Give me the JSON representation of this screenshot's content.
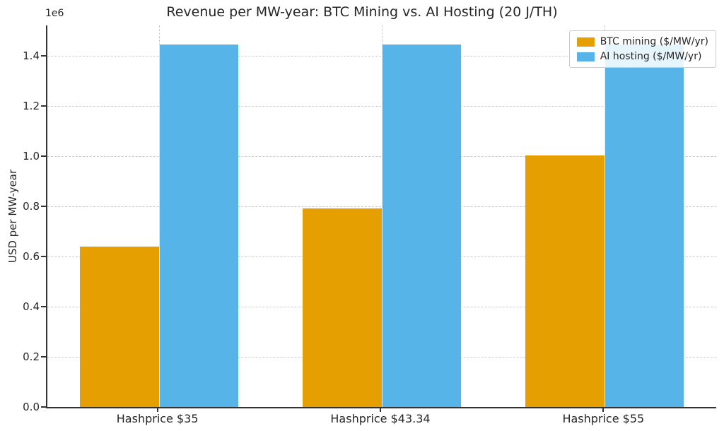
{
  "chart_data": {
    "type": "bar",
    "title": "Revenue per MW-year: BTC Mining vs. AI Hosting (20 J/TH)",
    "ylabel": "USD per MW-year",
    "y_offset_label": "1e6",
    "categories": [
      "Hashprice $35",
      "Hashprice $43.34",
      "Hashprice $55"
    ],
    "series": [
      {
        "name": "BTC mining ($/MW/yr)",
        "color": "#E69F00",
        "values": [
          638750,
          790955,
          1003750
        ]
      },
      {
        "name": "AI hosting ($/MW/yr)",
        "color": "#56B4E9",
        "values": [
          1445400,
          1445400,
          1445400
        ]
      }
    ],
    "ylim": [
      0,
      1521000
    ],
    "yticks": [
      0.0,
      0.2,
      0.4,
      0.6,
      0.8,
      1.0,
      1.2,
      1.4
    ],
    "ytick_scale": 1000000,
    "grid": true,
    "grid_style": "dashed",
    "legend_position": "upper right"
  },
  "styles": {
    "text_color": "#262626",
    "axis_color": "#333333",
    "grid_color": "#cccccc",
    "plot_bg": "#ffffff"
  }
}
